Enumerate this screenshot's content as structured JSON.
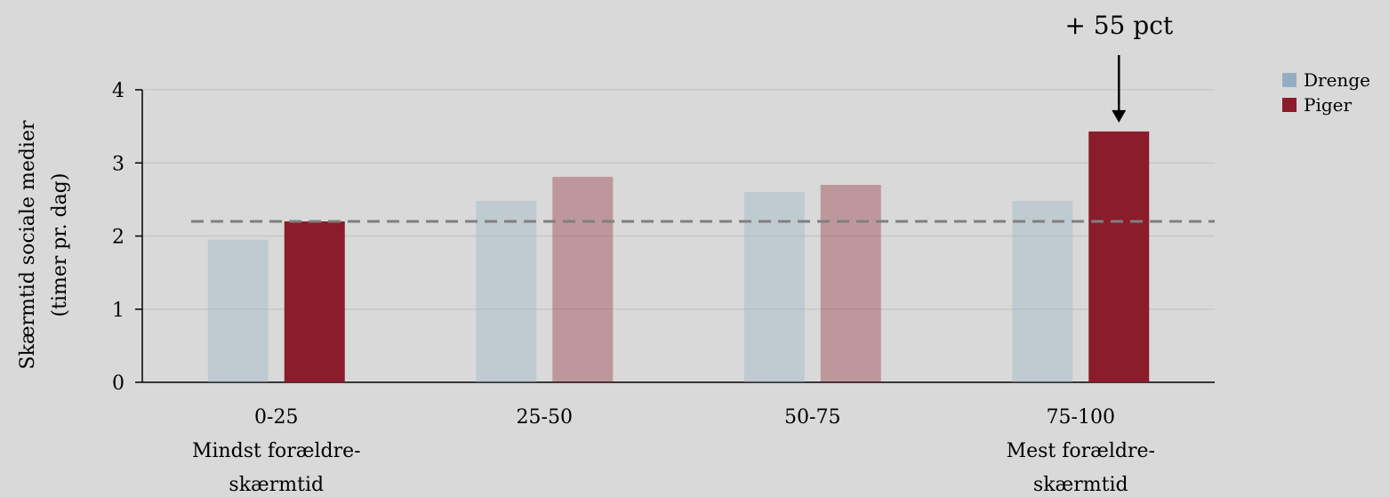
{
  "chart_data": {
    "type": "bar",
    "ylabel_lines": [
      "Skærmtid sociale medier",
      "(timer pr. dag)"
    ],
    "ylim": [
      0,
      4
    ],
    "yticks": [
      "0",
      "1",
      "2",
      "3",
      "4"
    ],
    "categories": [
      [
        "0-25",
        "Mindst forældre-",
        "skærmtid"
      ],
      [
        "25-50"
      ],
      [
        "50-75"
      ],
      [
        "75-100",
        "Mest forældre-",
        "skærmtid"
      ]
    ],
    "series": [
      {
        "name": "Drenge",
        "color": "#93aec4",
        "values": [
          1.95,
          2.48,
          2.6,
          2.48
        ],
        "faded": [
          true,
          true,
          true,
          true
        ]
      },
      {
        "name": "Piger",
        "color": "#8b1c2b",
        "values": [
          2.2,
          2.81,
          2.7,
          3.43
        ],
        "faded": [
          false,
          true,
          true,
          false
        ]
      }
    ],
    "reference_line": {
      "value": 2.2,
      "style": "dashed",
      "color": "#7f7f7f"
    },
    "annotation": {
      "text": "+ 55 pct",
      "target_category": 3,
      "target_series": "Piger"
    },
    "grid": true,
    "legend_position": "top-right"
  }
}
